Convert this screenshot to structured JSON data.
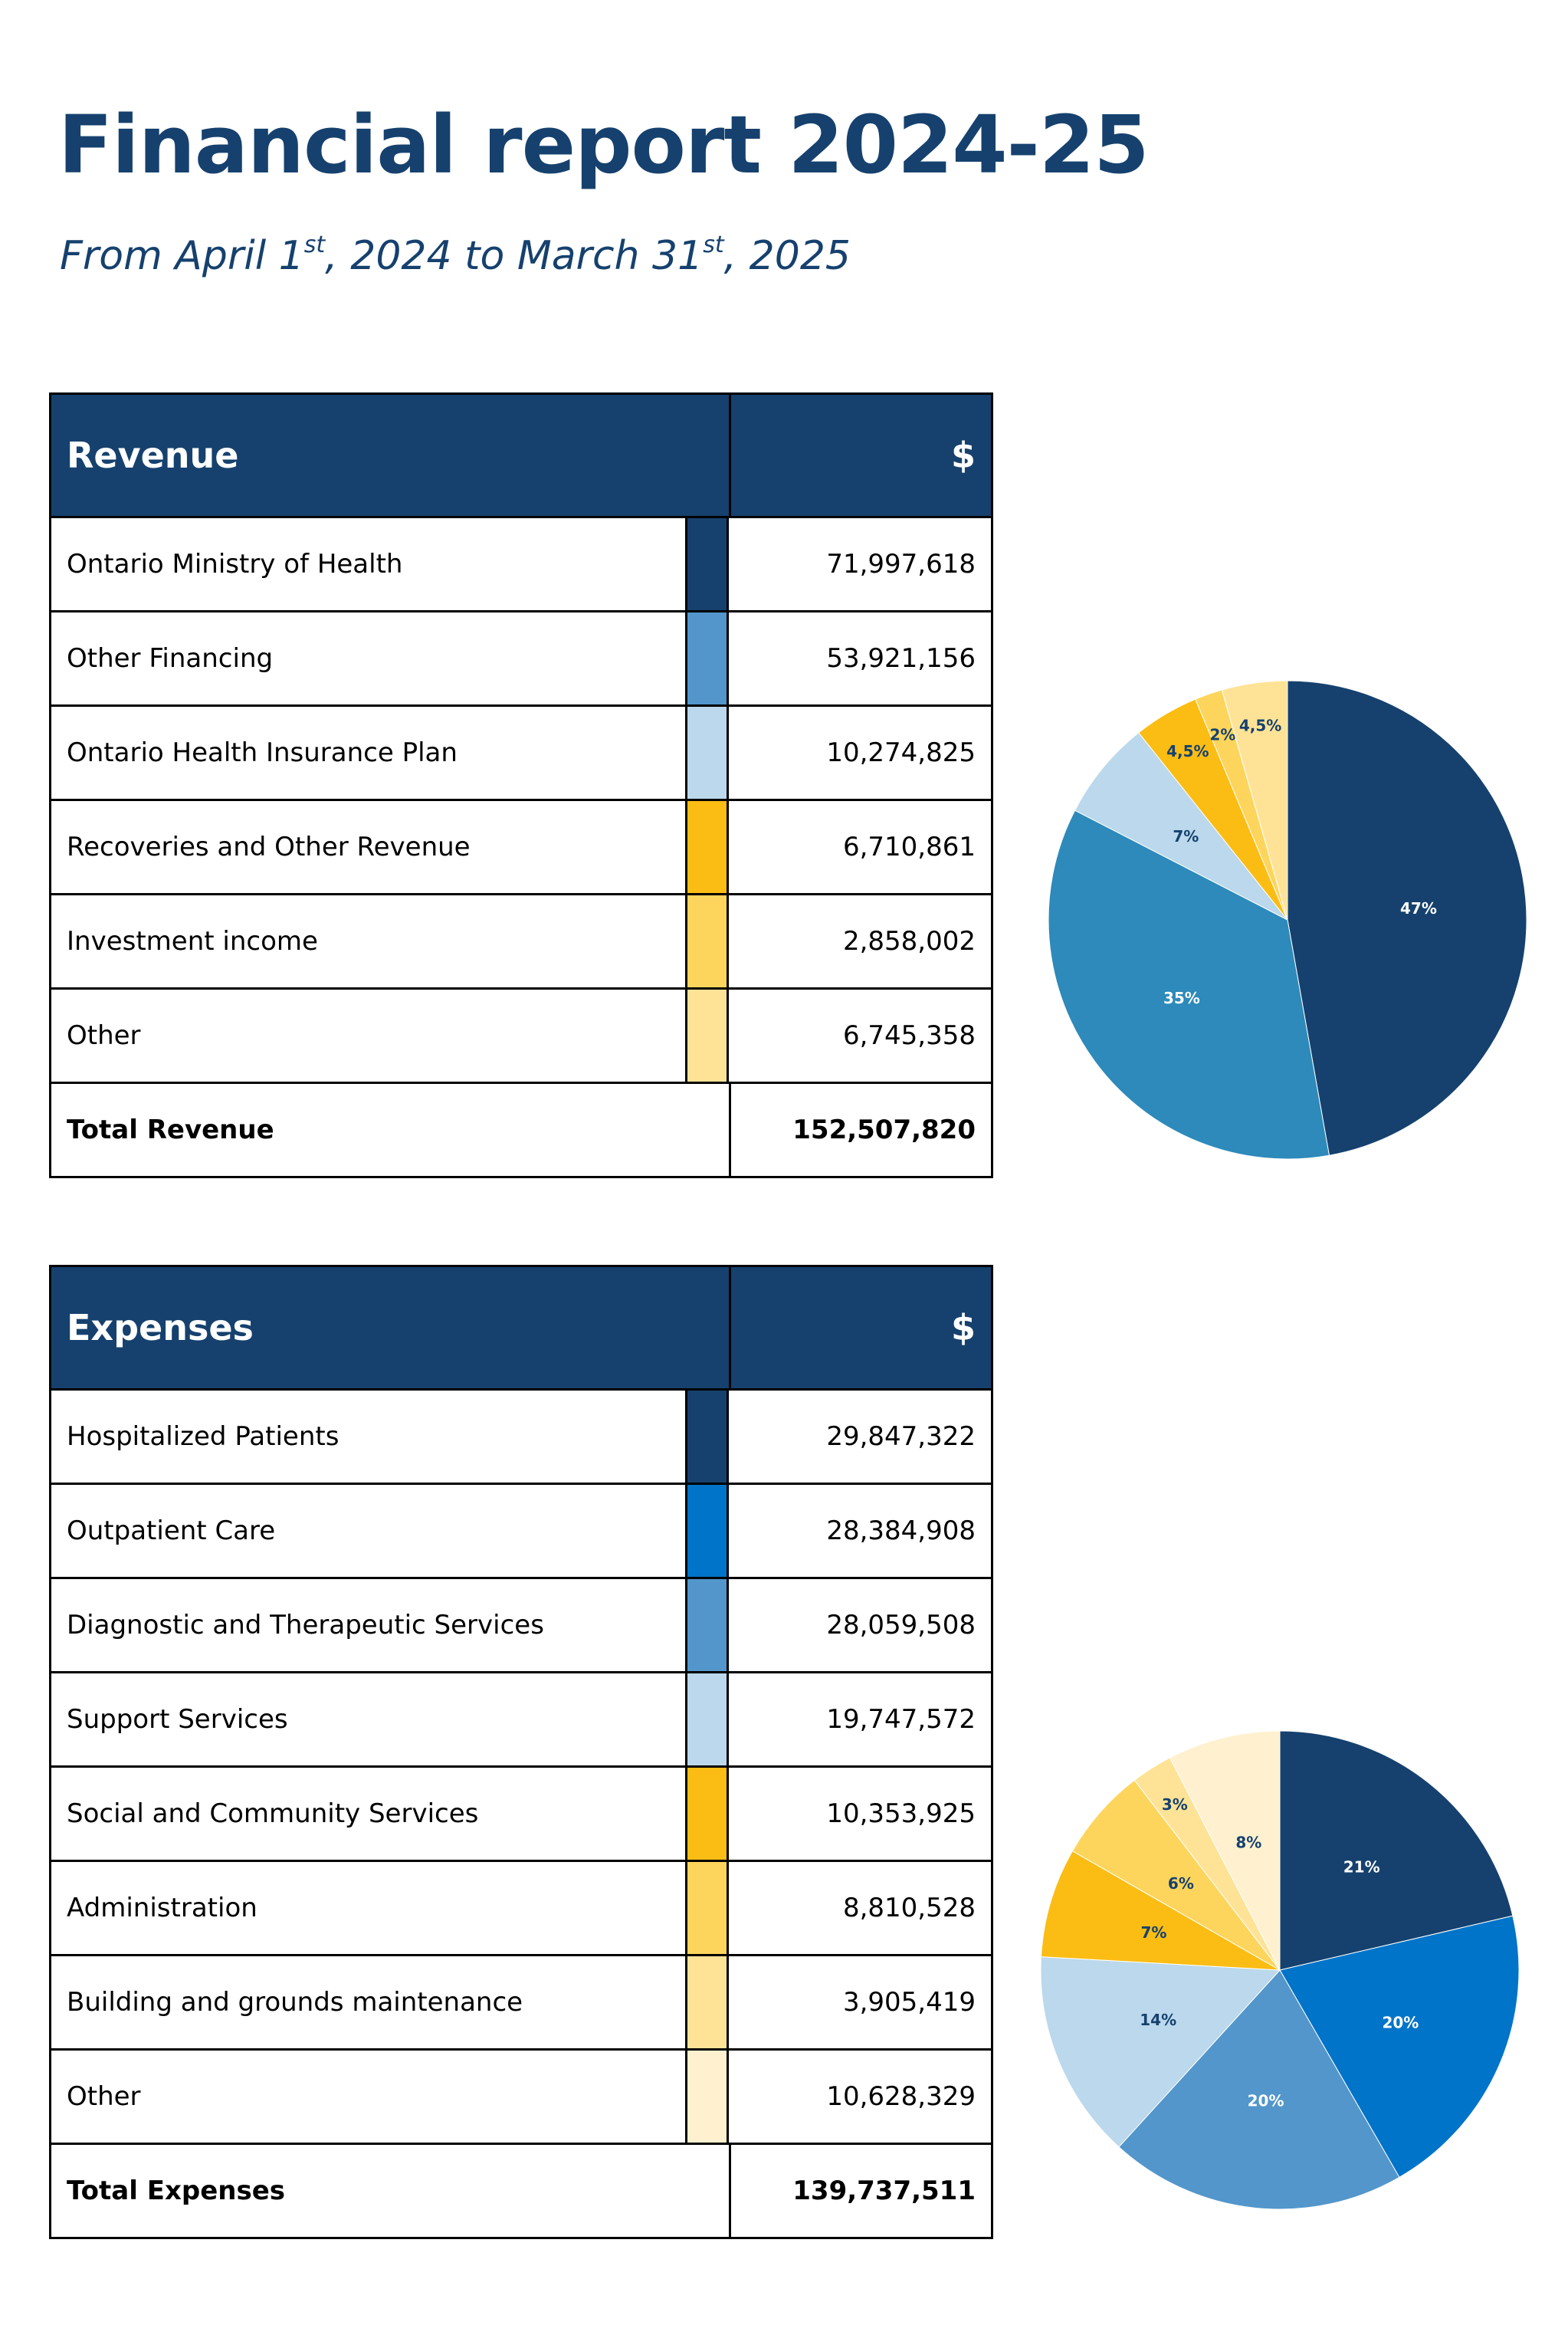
{
  "title": "Financial report 2024-25",
  "subtitle": {
    "prefix": "From April 1",
    "sup1": "st",
    "middle": ", 2024 to March 31",
    "sup2": "st",
    "suffix": ", 2025"
  },
  "colors": {
    "brand": "#16416e",
    "shade1": "#16416e",
    "shade2": "#0074c8",
    "shade3": "#5296cb",
    "shade4": "#bbd8ec",
    "shade5": "#fbbd14",
    "shade6": "#fdd55c",
    "shade7": "#fee397",
    "shade8": "#fff1cf"
  },
  "revenue": {
    "header_label": "Revenue",
    "header_amount": "$",
    "rows": [
      {
        "label": "Ontario Ministry of Health",
        "amount": "71,997,618",
        "color": "#16416e"
      },
      {
        "label": "Other Financing",
        "amount": "53,921,156",
        "color": "#5296cb"
      },
      {
        "label": "Ontario Health Insurance Plan",
        "amount": "10,274,825",
        "color": "#bbd8ec"
      },
      {
        "label": "Recoveries and Other Revenue",
        "amount": "6,710,861",
        "color": "#fbbd14"
      },
      {
        "label": "Investment income",
        "amount": "2,858,002",
        "color": "#fdd55c"
      },
      {
        "label": "Other",
        "amount": "6,745,358",
        "color": "#fee397"
      }
    ],
    "total_label": "Total Revenue",
    "total_amount": "152,507,820"
  },
  "expenses": {
    "header_label": "Expenses",
    "header_amount": "$",
    "rows": [
      {
        "label": "Hospitalized Patients",
        "amount": "29,847,322",
        "color": "#16416e"
      },
      {
        "label": "Outpatient Care",
        "amount": "28,384,908",
        "color": "#0074c8"
      },
      {
        "label": "Diagnostic and Therapeutic Services",
        "amount": "28,059,508",
        "color": "#5296cb"
      },
      {
        "label": "Support Services",
        "amount": "19,747,572",
        "color": "#bbd8ec"
      },
      {
        "label": "Social and Community Services",
        "amount": "10,353,925",
        "color": "#fbbd14"
      },
      {
        "label": "Administration",
        "amount": "8,810,528",
        "color": "#fdd55c"
      },
      {
        "label": "Building and grounds maintenance",
        "amount": "3,905,419",
        "color": "#fee397"
      },
      {
        "label": "Other",
        "amount": "10,628,329",
        "color": "#fff1cf"
      }
    ],
    "total_label": "Total Expenses",
    "total_amount": "139,737,511"
  },
  "chart_data": [
    {
      "type": "pie",
      "categories": [
        "Ontario Ministry of Health",
        "Other Financing",
        "Ontario Health Insurance Plan",
        "Recoveries and Other Revenue",
        "Investment income",
        "Other"
      ],
      "values": [
        71997618,
        53921156,
        10274825,
        6710861,
        2858002,
        6745358
      ],
      "labels": [
        "47%",
        "35%",
        "7%",
        "4,5%",
        "2%",
        "4,5%"
      ],
      "colors": [
        "#16416e",
        "#2d8aba",
        "#bbd8ec",
        "#fbbd14",
        "#fdd55c",
        "#fee397"
      ],
      "label_colors": [
        "#ffffff",
        "#ffffff",
        "#16416e",
        "#16416e",
        "#16416e",
        "#16416e"
      ]
    },
    {
      "type": "pie",
      "categories": [
        "Hospitalized Patients",
        "Outpatient Care",
        "Diagnostic and Therapeutic Services",
        "Support Services",
        "Social and Community Services",
        "Administration",
        "Building and grounds maintenance",
        "Other"
      ],
      "values": [
        29847322,
        28384908,
        28059508,
        19747572,
        10353925,
        8810528,
        3905419,
        10628329
      ],
      "labels": [
        "21%",
        "20%",
        "20%",
        "14%",
        "7%",
        "6%",
        "3%",
        "8%"
      ],
      "colors": [
        "#16416e",
        "#0074c8",
        "#5296cb",
        "#bbd8ec",
        "#fbbd14",
        "#fdd55c",
        "#fee397",
        "#fff1cf"
      ],
      "label_colors": [
        "#ffffff",
        "#ffffff",
        "#ffffff",
        "#16416e",
        "#16416e",
        "#16416e",
        "#16416e",
        "#16416e"
      ]
    }
  ]
}
